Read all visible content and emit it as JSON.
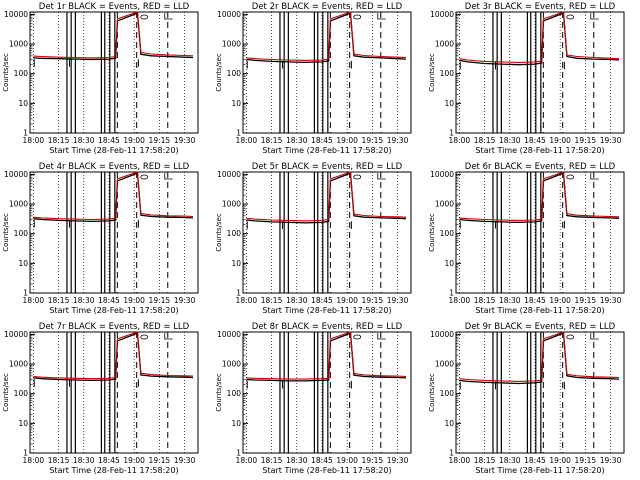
{
  "window": {
    "background": "#ffffff"
  },
  "chart_data": [
    {
      "type": "line",
      "title": "Det 1r BLACK = Events, RED = LLD",
      "xlabel": "Start Time (28-Feb-11 17:58:20)",
      "ylabel": "Counts/sec",
      "xticks": [
        "18:00",
        "18:15",
        "18:30",
        "18:45",
        "19:00",
        "19:15",
        "19:30"
      ],
      "yticks": [
        "1",
        "10",
        "100",
        "1000",
        "10000"
      ],
      "yscale": "log",
      "ylim": [
        1,
        12000
      ],
      "grid": "dotted vertical",
      "colors": {
        "events": "#000000",
        "lld": "#cc0000"
      },
      "series": [
        {
          "name": "Events",
          "color": "#000000",
          "x": [
            0.0,
            5.0,
            15.0,
            25.0,
            35.0,
            45.0,
            49.0,
            50.0,
            62.0,
            64.0,
            70.0,
            80.0,
            90.0,
            95.0
          ],
          "y": [
            340,
            330,
            320,
            310,
            300,
            310,
            330,
            6000,
            11000,
            450,
            400,
            380,
            360,
            350
          ]
        },
        {
          "name": "LLD",
          "color": "#cc0000",
          "x": [
            0.0,
            5.0,
            15.0,
            25.0,
            35.0,
            45.0,
            49.0,
            50.0,
            62.0,
            64.0,
            70.0,
            80.0,
            90.0,
            95.0
          ],
          "y": [
            390,
            380,
            360,
            350,
            340,
            350,
            380,
            7000,
            12000,
            520,
            460,
            430,
            410,
            400
          ]
        }
      ]
    },
    {
      "type": "line",
      "title": "Det 2r BLACK = Events, RED = LLD",
      "xlabel": "Start Time (28-Feb-11 17:58:20)",
      "ylabel": "Counts/sec",
      "xticks": [
        "18:00",
        "18:15",
        "18:30",
        "18:45",
        "19:00",
        "19:15",
        "19:30"
      ],
      "yticks": [
        "1",
        "10",
        "100",
        "1000",
        "10000"
      ],
      "yscale": "log",
      "ylim": [
        1,
        12000
      ],
      "grid": "dotted vertical",
      "colors": {
        "events": "#000000",
        "lld": "#cc0000"
      },
      "series": [
        {
          "name": "Events",
          "color": "#000000",
          "x": [
            0.0,
            5.0,
            15.0,
            25.0,
            35.0,
            45.0,
            49.0,
            50.0,
            62.0,
            64.0,
            70.0,
            80.0,
            90.0,
            95.0
          ],
          "y": [
            300,
            280,
            260,
            250,
            240,
            250,
            270,
            6000,
            11000,
            400,
            360,
            340,
            320,
            310
          ]
        },
        {
          "name": "LLD",
          "color": "#cc0000",
          "x": [
            0.0,
            5.0,
            15.0,
            25.0,
            35.0,
            45.0,
            49.0,
            50.0,
            62.0,
            64.0,
            70.0,
            80.0,
            90.0,
            95.0
          ],
          "y": [
            340,
            320,
            300,
            290,
            280,
            290,
            310,
            7000,
            12000,
            460,
            410,
            380,
            360,
            350
          ]
        }
      ]
    },
    {
      "type": "line",
      "title": "Det 3r BLACK = Events, RED = LLD",
      "xlabel": "Start Time (28-Feb-11 17:58:20)",
      "ylabel": "Counts/sec",
      "xticks": [
        "18:00",
        "18:15",
        "18:30",
        "18:45",
        "19:00",
        "19:15",
        "19:30"
      ],
      "yticks": [
        "1",
        "10",
        "100",
        "1000",
        "10000"
      ],
      "yscale": "log",
      "ylim": [
        1,
        12000
      ],
      "grid": "dotted vertical",
      "colors": {
        "events": "#000000",
        "lld": "#cc0000"
      },
      "series": [
        {
          "name": "Events",
          "color": "#000000",
          "x": [
            0.0,
            5.0,
            15.0,
            25.0,
            35.0,
            45.0,
            49.0,
            50.0,
            62.0,
            64.0,
            70.0,
            80.0,
            90.0,
            95.0
          ],
          "y": [
            280,
            250,
            220,
            210,
            200,
            210,
            230,
            6000,
            11000,
            380,
            330,
            310,
            300,
            290
          ]
        },
        {
          "name": "LLD",
          "color": "#cc0000",
          "x": [
            0.0,
            5.0,
            15.0,
            25.0,
            35.0,
            45.0,
            49.0,
            50.0,
            62.0,
            64.0,
            70.0,
            80.0,
            90.0,
            95.0
          ],
          "y": [
            320,
            290,
            260,
            250,
            240,
            250,
            270,
            7000,
            12000,
            430,
            380,
            350,
            330,
            320
          ]
        }
      ]
    },
    {
      "type": "line",
      "title": "Det 4r BLACK = Events, RED = LLD",
      "xlabel": "Start Time (28-Feb-11 17:58:20)",
      "ylabel": "Counts/sec",
      "xticks": [
        "18:00",
        "18:15",
        "18:30",
        "18:45",
        "19:00",
        "19:15",
        "19:30"
      ],
      "yticks": [
        "1",
        "10",
        "100",
        "1000",
        "10000"
      ],
      "yscale": "log",
      "ylim": [
        1,
        12000
      ],
      "grid": "dotted vertical",
      "colors": {
        "events": "#000000",
        "lld": "#cc0000"
      },
      "series": [
        {
          "name": "Events",
          "color": "#000000",
          "x": [
            0.0,
            5.0,
            15.0,
            25.0,
            35.0,
            45.0,
            49.0,
            50.0,
            62.0,
            64.0,
            70.0,
            80.0,
            90.0,
            95.0
          ],
          "y": [
            320,
            300,
            280,
            270,
            260,
            270,
            290,
            6000,
            11000,
            420,
            380,
            360,
            350,
            340
          ]
        },
        {
          "name": "LLD",
          "color": "#cc0000",
          "x": [
            0.0,
            5.0,
            15.0,
            25.0,
            35.0,
            45.0,
            49.0,
            50.0,
            62.0,
            64.0,
            70.0,
            80.0,
            90.0,
            95.0
          ],
          "y": [
            360,
            340,
            320,
            310,
            300,
            310,
            330,
            7000,
            12000,
            480,
            430,
            400,
            390,
            380
          ]
        }
      ]
    },
    {
      "type": "line",
      "title": "Det 5r BLACK = Events, RED = LLD",
      "xlabel": "Start Time (28-Feb-11 17:58:20)",
      "ylabel": "Counts/sec",
      "xticks": [
        "18:00",
        "18:15",
        "18:30",
        "18:45",
        "19:00",
        "19:15",
        "19:30"
      ],
      "yticks": [
        "1",
        "10",
        "100",
        "1000",
        "10000"
      ],
      "yscale": "log",
      "ylim": [
        1,
        12000
      ],
      "grid": "dotted vertical",
      "colors": {
        "events": "#000000",
        "lld": "#cc0000"
      },
      "series": [
        {
          "name": "Events",
          "color": "#000000",
          "x": [
            0.0,
            5.0,
            15.0,
            25.0,
            35.0,
            45.0,
            49.0,
            50.0,
            62.0,
            64.0,
            70.0,
            80.0,
            90.0,
            95.0
          ],
          "y": [
            290,
            270,
            250,
            240,
            230,
            240,
            260,
            6000,
            11000,
            400,
            360,
            340,
            330,
            320
          ]
        },
        {
          "name": "LLD",
          "color": "#cc0000",
          "x": [
            0.0,
            5.0,
            15.0,
            25.0,
            35.0,
            45.0,
            49.0,
            50.0,
            62.0,
            64.0,
            70.0,
            80.0,
            90.0,
            95.0
          ],
          "y": [
            330,
            310,
            290,
            280,
            270,
            280,
            300,
            7000,
            12000,
            460,
            410,
            380,
            370,
            360
          ]
        }
      ]
    },
    {
      "type": "line",
      "title": "Det 6r BLACK = Events, RED = LLD",
      "xlabel": "Start Time (28-Feb-11 17:58:20)",
      "ylabel": "Counts/sec",
      "xticks": [
        "18:00",
        "18:15",
        "18:30",
        "18:45",
        "19:00",
        "19:15",
        "19:30"
      ],
      "yticks": [
        "1",
        "10",
        "100",
        "1000",
        "10000"
      ],
      "yscale": "log",
      "ylim": [
        1,
        12000
      ],
      "grid": "dotted vertical",
      "colors": {
        "events": "#000000",
        "lld": "#cc0000"
      },
      "series": [
        {
          "name": "Events",
          "color": "#000000",
          "x": [
            0.0,
            5.0,
            15.0,
            25.0,
            35.0,
            45.0,
            49.0,
            50.0,
            62.0,
            64.0,
            70.0,
            80.0,
            90.0,
            95.0
          ],
          "y": [
            300,
            280,
            260,
            250,
            240,
            250,
            270,
            6000,
            11000,
            410,
            370,
            350,
            340,
            330
          ]
        },
        {
          "name": "LLD",
          "color": "#cc0000",
          "x": [
            0.0,
            5.0,
            15.0,
            25.0,
            35.0,
            45.0,
            49.0,
            50.0,
            62.0,
            64.0,
            70.0,
            80.0,
            90.0,
            95.0
          ],
          "y": [
            340,
            320,
            300,
            290,
            280,
            290,
            310,
            7000,
            12000,
            470,
            420,
            390,
            380,
            370
          ]
        }
      ]
    },
    {
      "type": "line",
      "title": "Det 7r BLACK = Events, RED = LLD",
      "xlabel": "Start Time (28-Feb-11 17:58:20)",
      "ylabel": "Counts/sec",
      "xticks": [
        "18:00",
        "18:15",
        "18:30",
        "18:45",
        "19:00",
        "19:15",
        "19:30"
      ],
      "yticks": [
        "1",
        "10",
        "100",
        "1000",
        "10000"
      ],
      "yscale": "log",
      "ylim": [
        1,
        12000
      ],
      "grid": "dotted vertical",
      "colors": {
        "events": "#000000",
        "lld": "#cc0000"
      },
      "series": [
        {
          "name": "Events",
          "color": "#000000",
          "x": [
            0.0,
            5.0,
            15.0,
            25.0,
            35.0,
            45.0,
            49.0,
            50.0,
            62.0,
            64.0,
            70.0,
            80.0,
            90.0,
            95.0
          ],
          "y": [
            340,
            320,
            300,
            290,
            280,
            290,
            310,
            6000,
            11000,
            430,
            390,
            370,
            360,
            350
          ]
        },
        {
          "name": "LLD",
          "color": "#cc0000",
          "x": [
            0.0,
            5.0,
            15.0,
            25.0,
            35.0,
            45.0,
            49.0,
            50.0,
            62.0,
            64.0,
            70.0,
            80.0,
            90.0,
            95.0
          ],
          "y": [
            380,
            360,
            340,
            330,
            320,
            330,
            350,
            7000,
            12000,
            490,
            440,
            410,
            400,
            390
          ]
        }
      ]
    },
    {
      "type": "line",
      "title": "Det 8r BLACK = Events, RED = LLD",
      "xlabel": "Start Time (28-Feb-11 17:58:20)",
      "ylabel": "Counts/sec",
      "xticks": [
        "18:00",
        "18:15",
        "18:30",
        "18:45",
        "19:00",
        "19:15",
        "19:30"
      ],
      "yticks": [
        "1",
        "10",
        "100",
        "1000",
        "10000"
      ],
      "yscale": "log",
      "ylim": [
        1,
        12000
      ],
      "grid": "dotted vertical",
      "colors": {
        "events": "#000000",
        "lld": "#cc0000"
      },
      "series": [
        {
          "name": "Events",
          "color": "#000000",
          "x": [
            0.0,
            5.0,
            15.0,
            25.0,
            35.0,
            45.0,
            49.0,
            50.0,
            62.0,
            64.0,
            70.0,
            80.0,
            90.0,
            95.0
          ],
          "y": [
            300,
            290,
            280,
            270,
            270,
            280,
            290,
            6000,
            11000,
            420,
            380,
            360,
            350,
            340
          ]
        },
        {
          "name": "LLD",
          "color": "#cc0000",
          "x": [
            0.0,
            5.0,
            15.0,
            25.0,
            35.0,
            45.0,
            49.0,
            50.0,
            62.0,
            64.0,
            70.0,
            80.0,
            90.0,
            95.0
          ],
          "y": [
            340,
            330,
            320,
            310,
            310,
            320,
            330,
            7000,
            12000,
            480,
            430,
            400,
            390,
            380
          ]
        }
      ]
    },
    {
      "type": "line",
      "title": "Det 9r BLACK = Events, RED = LLD",
      "xlabel": "Start Time (28-Feb-11 17:58:20)",
      "ylabel": "Counts/sec",
      "xticks": [
        "18:00",
        "18:15",
        "18:30",
        "18:45",
        "19:00",
        "19:15",
        "19:30"
      ],
      "yticks": [
        "1",
        "10",
        "100",
        "1000",
        "10000"
      ],
      "yscale": "log",
      "ylim": [
        1,
        12000
      ],
      "grid": "dotted vertical",
      "colors": {
        "events": "#000000",
        "lld": "#cc0000"
      },
      "series": [
        {
          "name": "Events",
          "color": "#000000",
          "x": [
            0.0,
            5.0,
            15.0,
            25.0,
            35.0,
            45.0,
            49.0,
            50.0,
            62.0,
            64.0,
            70.0,
            80.0,
            90.0,
            95.0
          ],
          "y": [
            280,
            260,
            240,
            230,
            220,
            230,
            250,
            6000,
            11000,
            400,
            350,
            330,
            320,
            310
          ]
        },
        {
          "name": "LLD",
          "color": "#cc0000",
          "x": [
            0.0,
            5.0,
            15.0,
            25.0,
            35.0,
            45.0,
            49.0,
            50.0,
            62.0,
            64.0,
            70.0,
            80.0,
            90.0,
            95.0
          ],
          "y": [
            320,
            300,
            280,
            270,
            260,
            270,
            290,
            7000,
            12000,
            450,
            400,
            370,
            360,
            350
          ]
        }
      ]
    }
  ]
}
